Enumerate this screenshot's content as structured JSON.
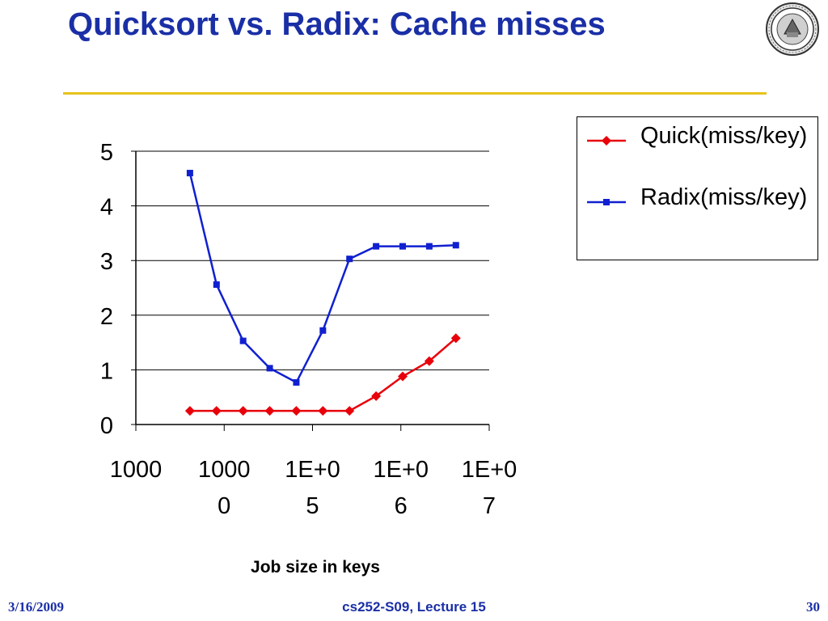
{
  "slide": {
    "title": "Quicksort vs. Radix: Cache misses",
    "footer_date": "3/16/2009",
    "footer_course": "cs252-S09, Lecture 15",
    "footer_page": "30"
  },
  "colors": {
    "title": "#1a2fa6",
    "rule": "#e8c21c",
    "quick": "#e8000a",
    "radix": "#1020d0"
  },
  "chart_data": {
    "type": "line",
    "x_scale": "log",
    "xlim": [
      1000,
      10000000
    ],
    "ylim": [
      0,
      5
    ],
    "grid": true,
    "legend_position": "right",
    "xlabel": "Job size in keys",
    "ylabel": "",
    "ytick_labels": [
      "0",
      "1",
      "2",
      "3",
      "4",
      "5"
    ],
    "xtick_labels": [
      {
        "value": 1000,
        "lines": [
          "1000"
        ]
      },
      {
        "value": 10000,
        "lines": [
          "1000",
          "0"
        ]
      },
      {
        "value": 100000,
        "lines": [
          "1E+0",
          "5"
        ]
      },
      {
        "value": 1000000,
        "lines": [
          "1E+0",
          "6"
        ]
      },
      {
        "value": 10000000,
        "lines": [
          "1E+0",
          "7"
        ]
      }
    ],
    "x": [
      4096,
      8192,
      16384,
      32768,
      65536,
      131072,
      262144,
      524288,
      1048576,
      2097152,
      4194304
    ],
    "series": [
      {
        "name": "Quick(miss/key)",
        "marker": "diamond",
        "values": [
          0.25,
          0.25,
          0.25,
          0.25,
          0.25,
          0.25,
          0.25,
          0.52,
          0.88,
          1.16,
          1.58
        ]
      },
      {
        "name": "Radix(miss/key)",
        "marker": "square",
        "values": [
          4.6,
          2.56,
          1.53,
          1.03,
          0.77,
          1.72,
          3.03,
          3.26,
          3.26,
          3.26,
          3.28
        ]
      }
    ]
  }
}
